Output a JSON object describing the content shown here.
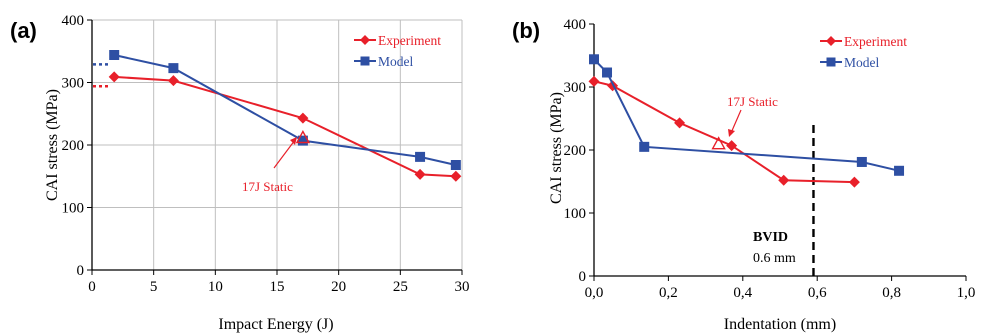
{
  "colors": {
    "experiment": "#e8202a",
    "model": "#2e4fa3",
    "grid": "#bfbfbf",
    "axis": "#000000"
  },
  "chart_data": [
    {
      "type": "line",
      "panel_label": "(a)",
      "xlabel": "Impact Energy (J)",
      "ylabel": "CAI stress (MPa)",
      "xlim": [
        0,
        30
      ],
      "ylim": [
        0,
        400
      ],
      "xticks": [
        "0",
        "5",
        "10",
        "15",
        "20",
        "25",
        "30"
      ],
      "yticks": [
        "0",
        "100",
        "200",
        "300",
        "400"
      ],
      "grid": true,
      "legend_position": "top-right",
      "series": [
        {
          "name": "Experiment",
          "marker": "diamond",
          "x": [
            1.8,
            6.6,
            17.1,
            26.6,
            29.5
          ],
          "y": [
            309,
            303,
            243,
            153,
            150
          ]
        },
        {
          "name": "Model",
          "marker": "square",
          "x": [
            1.8,
            6.6,
            17.1,
            26.6,
            29.5
          ],
          "y": [
            344,
            323,
            207,
            181,
            168
          ]
        }
      ],
      "extra_points": [
        {
          "marker": "triangle-open",
          "x": 17.1,
          "y": 212
        }
      ],
      "dotted_stubs": [
        {
          "series": "Model",
          "y": 329
        },
        {
          "series": "Experiment",
          "y": 294
        }
      ],
      "annotations": [
        {
          "text": "17J Static",
          "x": 16.6,
          "y": 130
        }
      ]
    },
    {
      "type": "line",
      "panel_label": "(b)",
      "xlabel": "Indentation (mm)",
      "ylabel": "CAI stress (MPa)",
      "xlim": [
        0,
        1.0
      ],
      "ylim": [
        0,
        400
      ],
      "xticks": [
        "0,0",
        "0,2",
        "0,4",
        "0,6",
        "0,8",
        "1,0"
      ],
      "yticks": [
        "0",
        "100",
        "200",
        "300",
        "400"
      ],
      "grid": false,
      "legend_position": "top-right",
      "series": [
        {
          "name": "Experiment",
          "marker": "diamond",
          "x": [
            0.0,
            0.05,
            0.23,
            0.37,
            0.51,
            0.7
          ],
          "y": [
            309,
            302,
            243,
            207,
            152,
            149
          ]
        },
        {
          "name": "Model",
          "marker": "square",
          "x": [
            0.0,
            0.035,
            0.135,
            0.72,
            0.82
          ],
          "y": [
            344,
            323,
            205,
            181,
            167
          ]
        }
      ],
      "extra_points": [
        {
          "marker": "triangle-open",
          "x": 0.335,
          "y": 210
        }
      ],
      "reference_line": {
        "x": 0.59,
        "label": "BVID",
        "value": "0.6 mm"
      },
      "annotations": [
        {
          "text": "17J Static",
          "x": 0.355,
          "y": 273
        }
      ]
    }
  ]
}
